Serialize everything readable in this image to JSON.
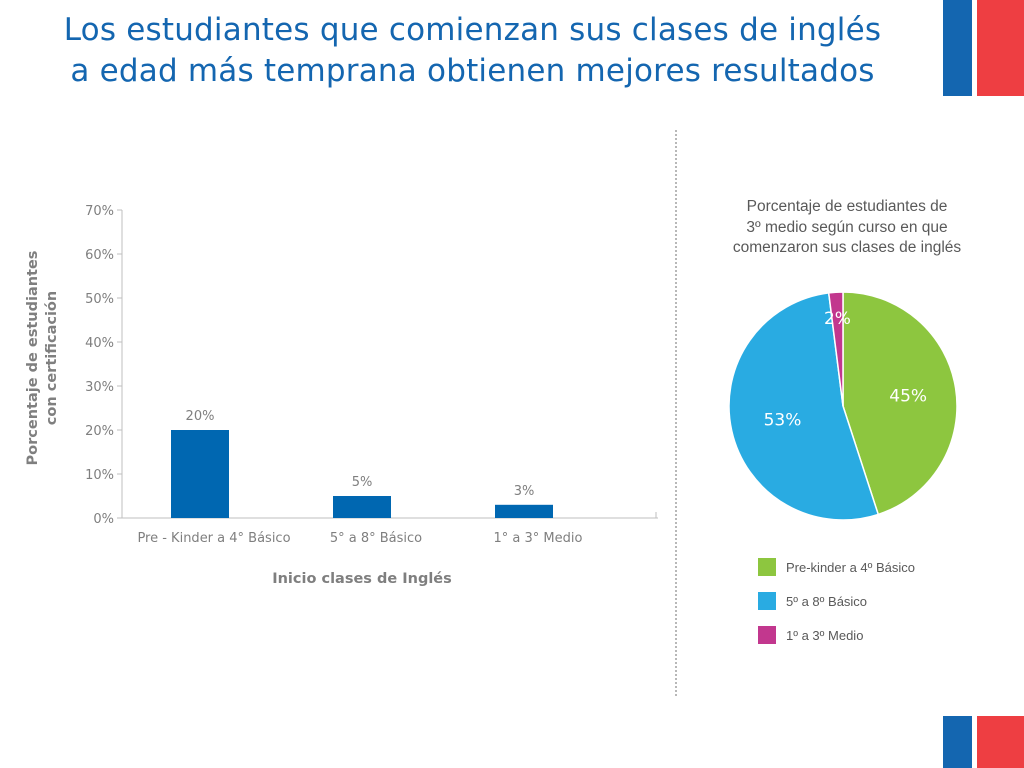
{
  "slide": {
    "title_lines": [
      "Los estudiantes que comienzan sus clases de inglés",
      "a edad más temprana obtienen mejores resultados"
    ],
    "colors": {
      "title": "#1466b0",
      "flag_blue": "#1466b0",
      "flag_red": "#ee3e42"
    }
  },
  "chart_data": [
    {
      "type": "bar",
      "title": "",
      "xlabel": "Inicio clases de Inglés",
      "ylabel_lines": [
        "Porcentaje de estudiantes",
        "con certificación"
      ],
      "categories": [
        "Pre - Kinder a 4° Básico",
        "5° a 8° Básico",
        "1° a 3° Medio"
      ],
      "values": [
        20,
        5,
        3
      ],
      "data_labels": [
        "20%",
        "5%",
        "3%"
      ],
      "ylim": [
        0,
        70
      ],
      "yticks": [
        0,
        10,
        20,
        30,
        40,
        50,
        60,
        70
      ],
      "ytick_labels": [
        "0%",
        "10%",
        "20%",
        "30%",
        "40%",
        "50%",
        "60%",
        "70%"
      ],
      "grid": false,
      "color": "#0067b1"
    },
    {
      "type": "pie",
      "title_lines": [
        "Porcentaje de estudiantes de",
        "3º medio según curso en que",
        "comenzaron sus clases de inglés"
      ],
      "slices": [
        {
          "label": "Pre-kinder a 4º Básico",
          "value": 45,
          "data_label": "45%",
          "color": "#8dc63f"
        },
        {
          "label": "5º a  8º Básico",
          "value": 53,
          "data_label": "53%",
          "color": "#29abe2"
        },
        {
          "label": "1º a 3º Medio",
          "value": 2,
          "data_label": "2%",
          "color": "#c2378e"
        }
      ],
      "legend_position": "bottom"
    }
  ]
}
